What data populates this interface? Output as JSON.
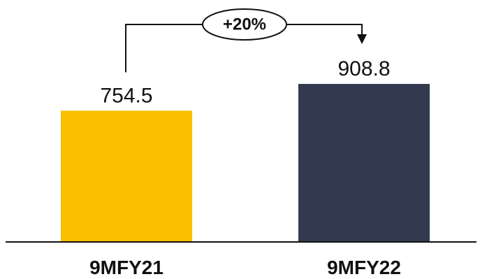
{
  "chart_data": {
    "type": "bar",
    "categories": [
      "9MFY21",
      "9MFY22"
    ],
    "values": [
      754.5,
      908.8
    ],
    "value_labels": [
      "754.5",
      "908.8"
    ],
    "colors": [
      "#FBBF00",
      "#333A4F"
    ],
    "growth_label": "+20%",
    "ylim": [
      0,
      1000
    ],
    "grid": false,
    "title": "",
    "xlabel": "",
    "ylabel": ""
  }
}
